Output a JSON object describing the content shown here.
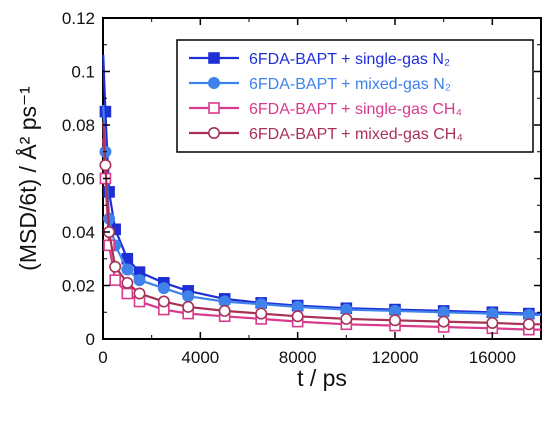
{
  "chart_data": {
    "type": "line",
    "xlabel": "t / ps",
    "ylabel": "(MSD/6t) / Å² ps⁻¹",
    "xlim": [
      0,
      18000
    ],
    "ylim": [
      0,
      0.12
    ],
    "x_ticks": [
      "0",
      "4000",
      "8000",
      "12000",
      "16000"
    ],
    "y_ticks": [
      "0",
      "0.02",
      "0.04",
      "0.06",
      "0.08",
      "0.1",
      "0.12"
    ],
    "legend_position": "top-right",
    "grid": false,
    "series": [
      {
        "name": "6FDA-BAPT + single-gas N₂",
        "color": "#1f2fd6",
        "marker": "square-filled",
        "x": [
          100,
          250,
          500,
          1000,
          1500,
          2500,
          3500,
          5000,
          6500,
          8000,
          10000,
          12000,
          14000,
          16000,
          17500
        ],
        "y": [
          0.085,
          0.055,
          0.041,
          0.03,
          0.025,
          0.021,
          0.018,
          0.015,
          0.0135,
          0.0125,
          0.0115,
          0.011,
          0.0105,
          0.01,
          0.0095
        ]
      },
      {
        "name": "6FDA-BAPT + mixed-gas N₂",
        "color": "#3f82ea",
        "marker": "circle-filled",
        "x": [
          100,
          250,
          500,
          1000,
          1500,
          2500,
          3500,
          5000,
          6500,
          8000,
          10000,
          12000,
          14000,
          16000,
          17500
        ],
        "y": [
          0.07,
          0.045,
          0.035,
          0.026,
          0.022,
          0.019,
          0.016,
          0.014,
          0.013,
          0.012,
          0.011,
          0.0105,
          0.01,
          0.0095,
          0.009
        ]
      },
      {
        "name": "6FDA-BAPT + single-gas CH₄",
        "color": "#d83a8c",
        "marker": "square-open",
        "x": [
          100,
          250,
          500,
          1000,
          1500,
          2500,
          3500,
          5000,
          6500,
          8000,
          10000,
          12000,
          14000,
          16000,
          17500
        ],
        "y": [
          0.06,
          0.035,
          0.022,
          0.017,
          0.014,
          0.011,
          0.0095,
          0.0085,
          0.0075,
          0.0065,
          0.0055,
          0.005,
          0.0045,
          0.004,
          0.0035
        ]
      },
      {
        "name": "6FDA-BAPT + mixed-gas CH₄",
        "color": "#a83256",
        "marker": "circle-open",
        "x": [
          100,
          250,
          500,
          1000,
          1500,
          2500,
          3500,
          5000,
          6500,
          8000,
          10000,
          12000,
          14000,
          16000,
          17500
        ],
        "y": [
          0.065,
          0.04,
          0.027,
          0.021,
          0.017,
          0.014,
          0.012,
          0.0105,
          0.0095,
          0.0085,
          0.0075,
          0.007,
          0.0065,
          0.006,
          0.0055
        ]
      }
    ]
  }
}
